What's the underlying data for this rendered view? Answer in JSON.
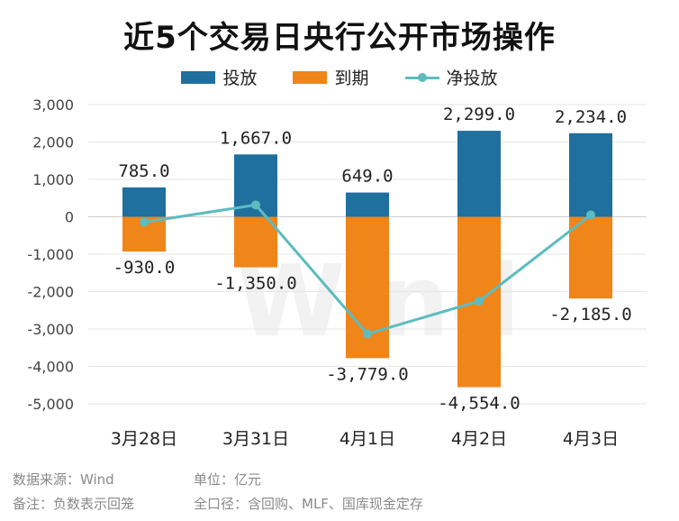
{
  "title": "近5个交易日央行公开市场操作",
  "legend": {
    "injection": "投放",
    "maturity": "到期",
    "net": "净投放"
  },
  "colors": {
    "injection": "#1f6f9f",
    "maturity": "#f08519",
    "net": "#5cbcbf"
  },
  "footer": {
    "source": "数据来源：Wind",
    "unit": "单位：亿元",
    "note": "备注：负数表示回笼",
    "scope": "全口径：含回购、MLF、国库现金定存"
  },
  "watermark": "Wind",
  "chart_data": {
    "type": "bar",
    "categories": [
      "3月28日",
      "3月31日",
      "4月1日",
      "4月2日",
      "4月3日"
    ],
    "series": [
      {
        "name": "投放",
        "type": "bar",
        "values": [
          785.0,
          1667.0,
          649.0,
          2299.0,
          2234.0
        ],
        "labels": [
          "785.0",
          "1,667.0",
          "649.0",
          "2,299.0",
          "2,234.0"
        ]
      },
      {
        "name": "到期",
        "type": "bar",
        "values": [
          -930.0,
          -1350.0,
          -3779.0,
          -4554.0,
          -2185.0
        ],
        "labels": [
          "-930.0",
          "-1,350.0",
          "-3,779.0",
          "-4,554.0",
          "-2,185.0"
        ]
      },
      {
        "name": "净投放",
        "type": "line",
        "values": [
          -145.0,
          317.0,
          -3130.0,
          -2255.0,
          49.0
        ]
      }
    ],
    "ylim": [
      -5000,
      3000
    ],
    "yticks": [
      3000,
      2000,
      1000,
      0,
      -1000,
      -2000,
      -3000,
      -4000,
      -5000
    ],
    "ytick_labels": [
      "3,000",
      "2,000",
      "1,000",
      "0",
      "-1,000",
      "-2,000",
      "-3,000",
      "-4,000",
      "-5,000"
    ],
    "grid": true,
    "legend_position": "top"
  }
}
